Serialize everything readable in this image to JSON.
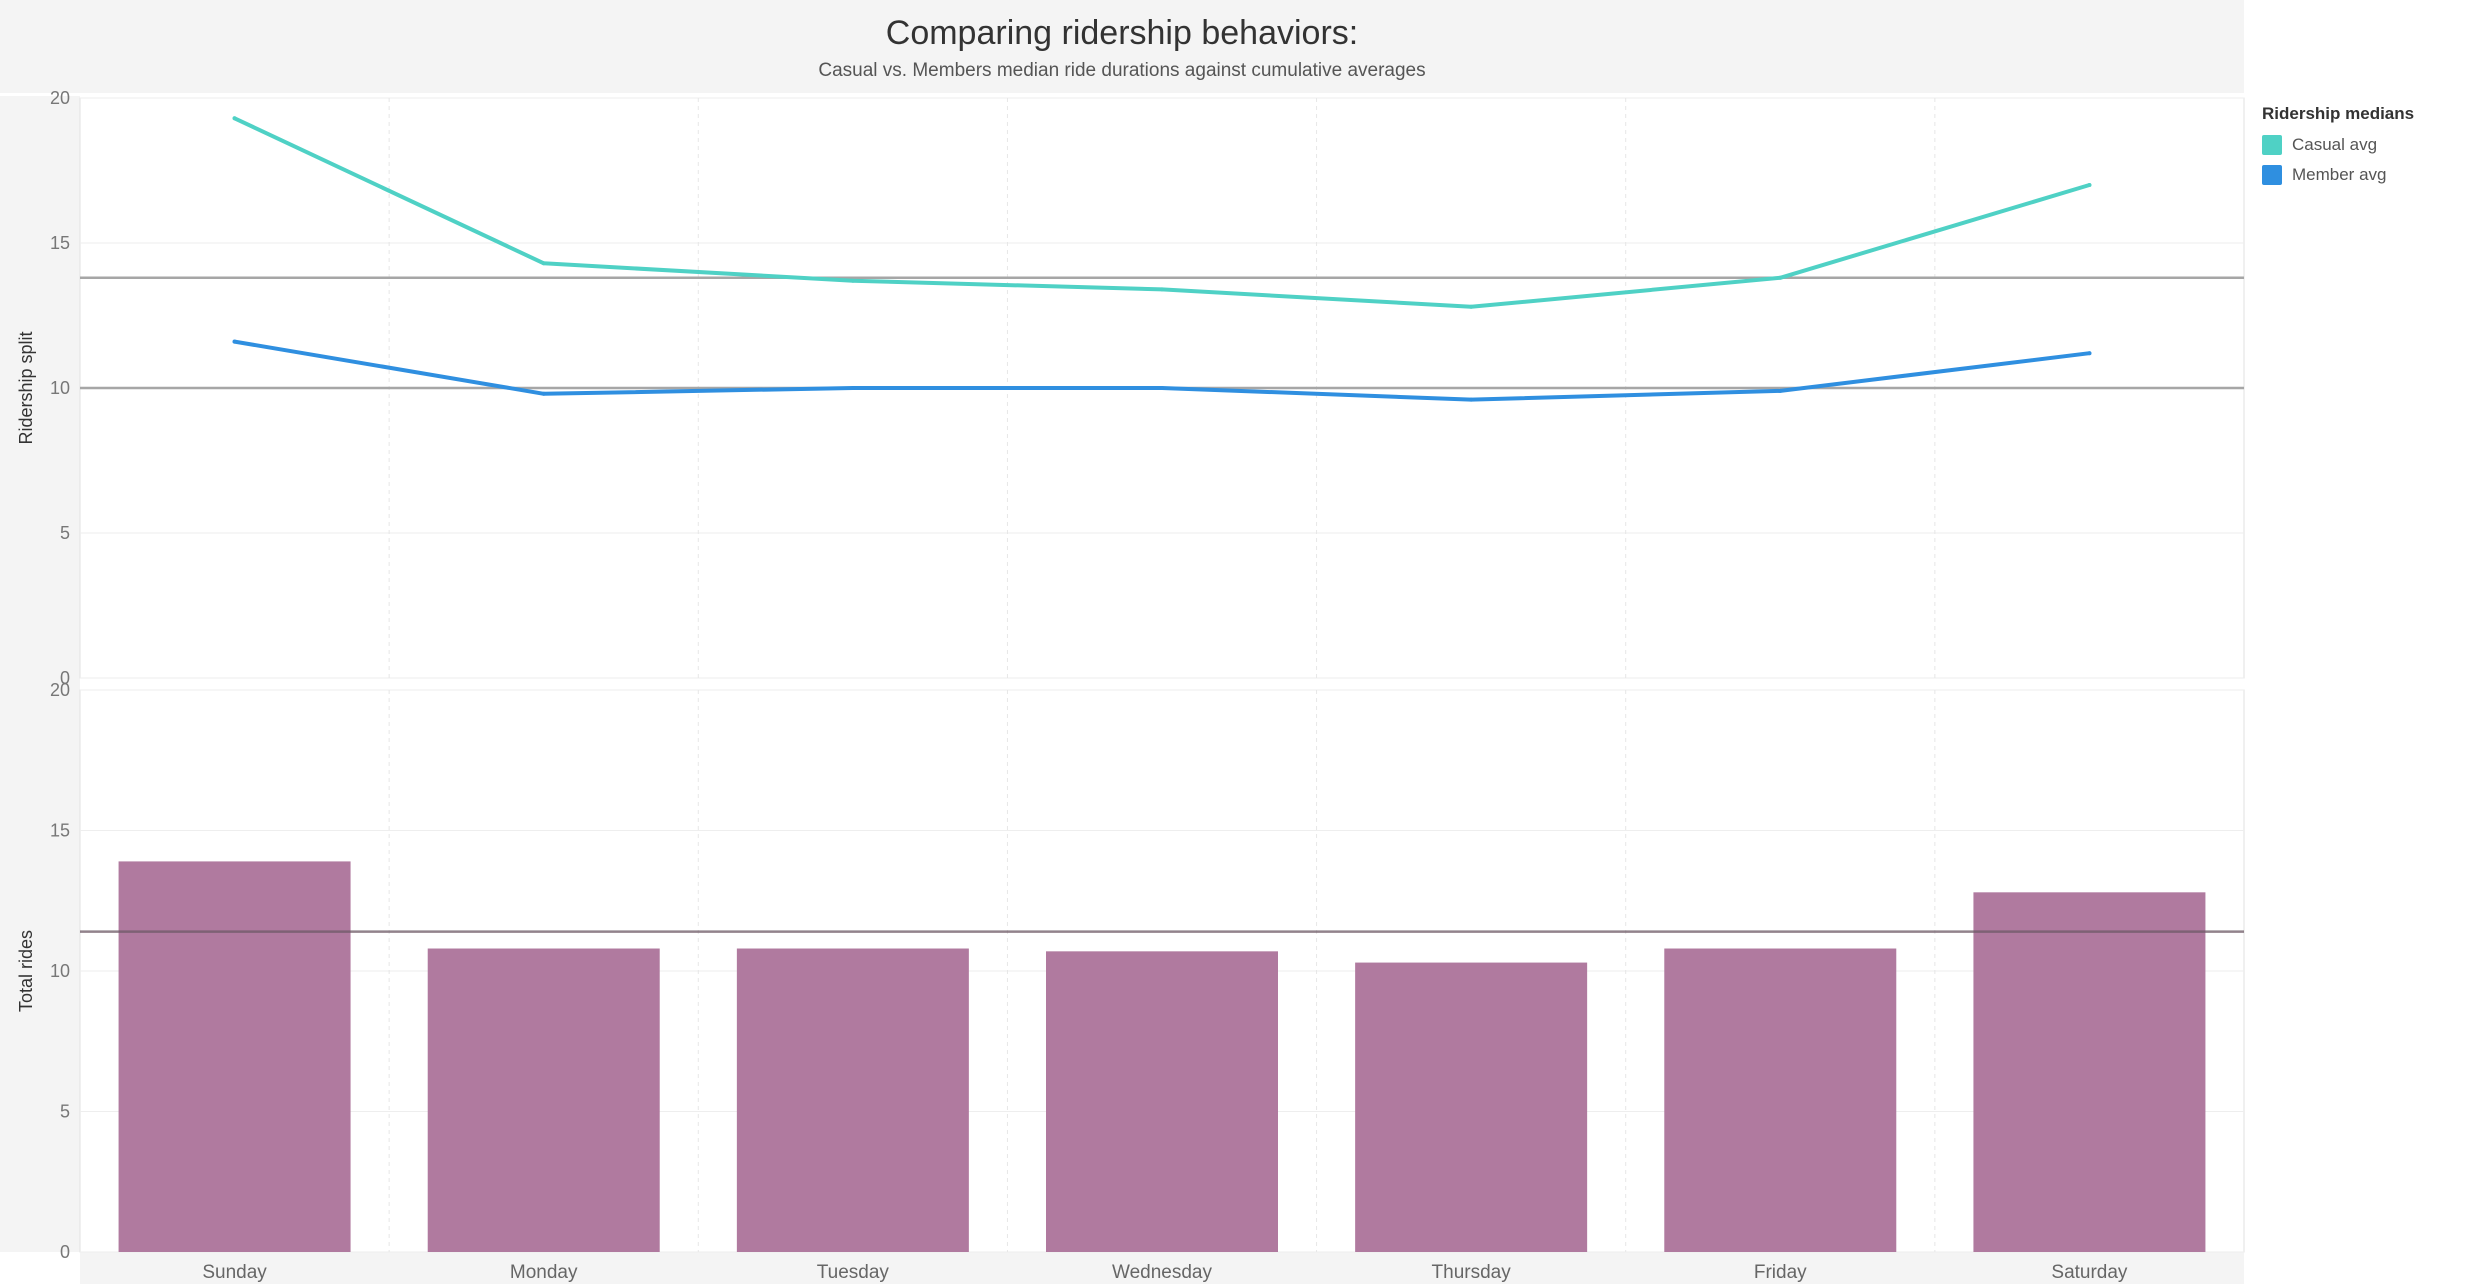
{
  "header": {
    "title": "Comparing ridership behaviors:",
    "subtitle": "Casual vs. Members median ride durations against cumulative averages"
  },
  "legend": {
    "title": "Ridership medians",
    "items": [
      {
        "label": "Casual avg",
        "color": "#4fd1c5"
      },
      {
        "label": "Member avg",
        "color": "#2f8fe0"
      }
    ]
  },
  "chart_data": [
    {
      "type": "line",
      "ylabel": "Ridership split",
      "ylim": [
        0,
        20
      ],
      "yticks": [
        0,
        5,
        10,
        15,
        20
      ],
      "categories": [
        "Sunday",
        "Monday",
        "Tuesday",
        "Wednesday",
        "Thursday",
        "Friday",
        "Saturday"
      ],
      "series": [
        {
          "name": "Casual avg",
          "color": "#4fd1c5",
          "values": [
            19.3,
            14.3,
            13.7,
            13.4,
            12.8,
            13.8,
            17.0
          ]
        },
        {
          "name": "Member avg",
          "color": "#2f8fe0",
          "values": [
            11.6,
            9.8,
            10.0,
            10.0,
            9.6,
            9.9,
            11.2
          ]
        }
      ],
      "reference_lines": [
        13.8,
        10.0
      ],
      "grid": true
    },
    {
      "type": "bar",
      "ylabel": "Total rides",
      "ylim": [
        0,
        20
      ],
      "yticks": [
        0,
        5,
        10,
        15,
        20
      ],
      "categories": [
        "Sunday",
        "Monday",
        "Tuesday",
        "Wednesday",
        "Thursday",
        "Friday",
        "Saturday"
      ],
      "values": [
        13.9,
        10.8,
        10.8,
        10.7,
        10.3,
        10.8,
        12.8
      ],
      "bar_color": "#b07a9f",
      "reference_lines": [
        11.4
      ],
      "grid": true
    }
  ]
}
